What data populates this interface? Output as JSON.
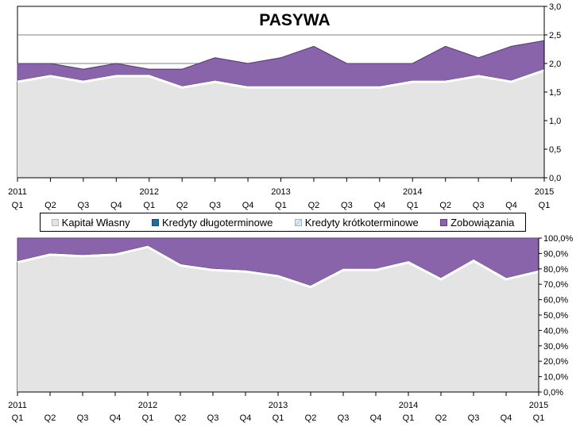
{
  "colors": {
    "kapital": "#e4e4e4",
    "kredyty_dlugo": "#1f6f9f",
    "kredyty_krotko": "#dde8f4",
    "zobowiazania": "#8a64aa",
    "zobowiazania_edge": "#5e3f7e"
  },
  "chart_data": [
    {
      "type": "area",
      "stacked": true,
      "title": "PASYWA",
      "x_periods": [
        "2011 Q1",
        "Q2",
        "Q3",
        "Q4",
        "2012 Q1",
        "Q2",
        "Q3",
        "Q4",
        "2013 Q1",
        "Q2",
        "Q3",
        "Q4",
        "2014 Q1",
        "Q2",
        "Q3",
        "Q4",
        "2015 Q1"
      ],
      "year_labels": [
        {
          "index": 0,
          "label": "2011"
        },
        {
          "index": 4,
          "label": "2012"
        },
        {
          "index": 8,
          "label": "2013"
        },
        {
          "index": 12,
          "label": "2014"
        },
        {
          "index": 16,
          "label": "2015"
        }
      ],
      "quarter_labels": [
        "Q1",
        "Q2",
        "Q3",
        "Q4",
        "Q1",
        "Q2",
        "Q3",
        "Q4",
        "Q1",
        "Q2",
        "Q3",
        "Q4",
        "Q1",
        "Q2",
        "Q3",
        "Q4",
        "Q1"
      ],
      "y_axis": {
        "min": 0,
        "max": 3.0,
        "step": 0.5,
        "position": "right",
        "tick_labels": [
          "0,0",
          "0,5",
          "1,0",
          "1,5",
          "2,0",
          "2,5",
          "3,0"
        ]
      },
      "gridlines": [
        2.0,
        2.5
      ],
      "series": [
        {
          "name": "Kapitał Własny",
          "values": [
            1.7,
            1.8,
            1.7,
            1.8,
            1.8,
            1.6,
            1.7,
            1.6,
            1.6,
            1.6,
            1.6,
            1.6,
            1.7,
            1.7,
            1.8,
            1.7,
            1.9
          ]
        },
        {
          "name": "Kredyty długoterminowe",
          "values": [
            0,
            0,
            0,
            0,
            0,
            0,
            0,
            0,
            0,
            0,
            0,
            0,
            0,
            0,
            0,
            0,
            0
          ]
        },
        {
          "name": "Kredyty krótkoterminowe",
          "values": [
            0,
            0,
            0,
            0,
            0,
            0,
            0,
            0,
            0,
            0,
            0,
            0,
            0,
            0,
            0,
            0,
            0
          ]
        },
        {
          "name": "Zobowiązania",
          "values": [
            0.3,
            0.2,
            0.2,
            0.2,
            0.1,
            0.3,
            0.4,
            0.4,
            0.5,
            0.7,
            0.4,
            0.4,
            0.3,
            0.6,
            0.3,
            0.6,
            0.5
          ]
        }
      ],
      "legend": [
        "Kapitał Własny",
        "Kredyty długoterminowe",
        "Kredyty krótkoterminowe",
        "Zobowiązania"
      ]
    },
    {
      "type": "area",
      "stacked": true,
      "percent": true,
      "x_periods": [
        "2011 Q1",
        "Q2",
        "Q3",
        "Q4",
        "2012 Q1",
        "Q2",
        "Q3",
        "Q4",
        "2013 Q1",
        "Q2",
        "Q3",
        "Q4",
        "2014 Q1",
        "Q2",
        "Q3",
        "Q4",
        "2015 Q1"
      ],
      "year_labels": [
        {
          "index": 0,
          "label": "2011"
        },
        {
          "index": 4,
          "label": "2012"
        },
        {
          "index": 8,
          "label": "2013"
        },
        {
          "index": 12,
          "label": "2014"
        },
        {
          "index": 16,
          "label": "2015"
        }
      ],
      "quarter_labels": [
        "Q1",
        "Q2",
        "Q3",
        "Q4",
        "Q1",
        "Q2",
        "Q3",
        "Q4",
        "Q1",
        "Q2",
        "Q3",
        "Q4",
        "Q1",
        "Q2",
        "Q3",
        "Q4",
        "Q1"
      ],
      "y_axis": {
        "min": 0,
        "max": 100,
        "step": 10,
        "position": "right",
        "tick_labels": [
          "0,0%",
          "10,0%",
          "20,0%",
          "30,0%",
          "40,0%",
          "50,0%",
          "60,0%",
          "70,0%",
          "80,0%",
          "90,0%",
          "100,0%"
        ]
      },
      "series": [
        {
          "name": "Kapitał Własny",
          "values": [
            85,
            90,
            89,
            90,
            95,
            83,
            80,
            79,
            76,
            69,
            80,
            80,
            85,
            74,
            86,
            74,
            79
          ]
        },
        {
          "name": "Kredyty długoterminowe",
          "values": [
            0,
            0,
            0,
            0,
            0,
            0,
            0,
            0,
            0,
            0,
            0,
            0,
            0,
            0,
            0,
            0,
            0
          ]
        },
        {
          "name": "Kredyty krótkoterminowe",
          "values": [
            0,
            0,
            0,
            0,
            0,
            0,
            0,
            0,
            0,
            0,
            0,
            0,
            0,
            0,
            0,
            0,
            0
          ]
        },
        {
          "name": "Zobowiązania",
          "values": [
            15,
            10,
            11,
            10,
            5,
            17,
            20,
            21,
            24,
            31,
            20,
            20,
            15,
            26,
            14,
            26,
            21
          ]
        }
      ]
    }
  ]
}
